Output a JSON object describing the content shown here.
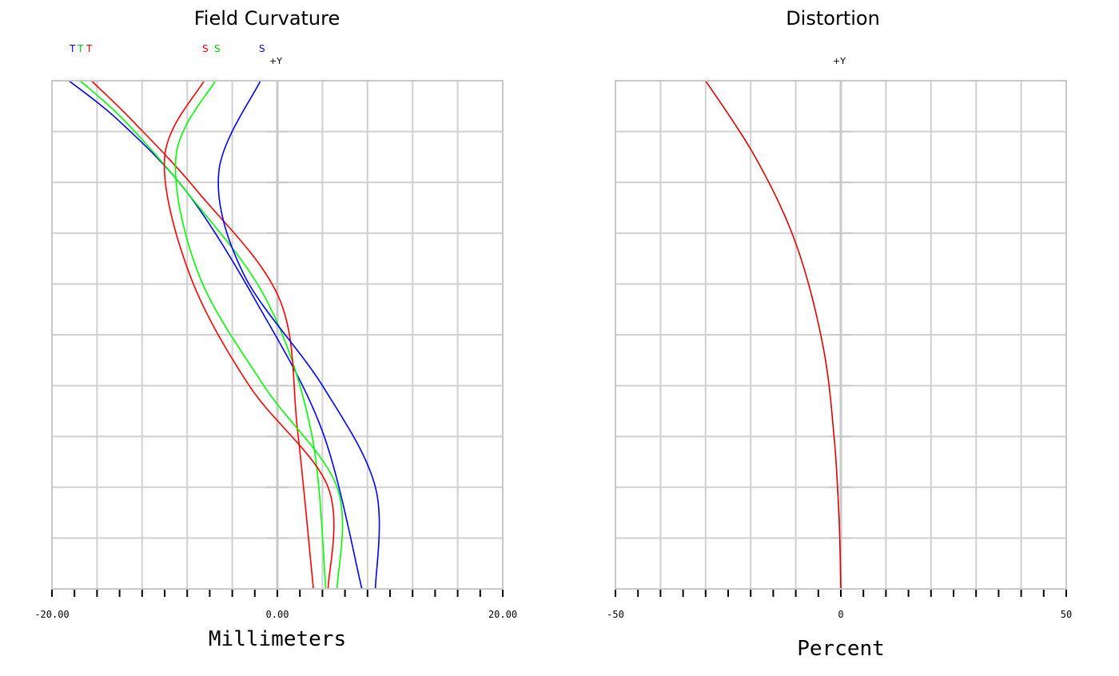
{
  "chart_data": [
    {
      "type": "line",
      "title": "Field Curvature",
      "xlabel": "Millimeters",
      "ylabel_marker": "+Y",
      "xlim": [
        -20,
        20
      ],
      "ylim": [
        0,
        1
      ],
      "tick_labels": [
        "-20.00",
        "0.00",
        "20.00"
      ],
      "tick_label_values": [
        -20,
        0,
        20
      ],
      "legend_tangential": [
        "T",
        "T",
        "T"
      ],
      "legend_sagittal": [
        "S",
        "S",
        "S"
      ],
      "grid": true,
      "series": [
        {
          "type": "T",
          "color": "#0000ff",
          "x": [
            -18.5,
            -14.0,
            -8.0,
            -2.0,
            4.0,
            7.5
          ],
          "y": [
            1.0,
            0.92,
            0.78,
            0.57,
            0.31,
            0.0
          ]
        },
        {
          "type": "T",
          "color": "#00ff00",
          "x": [
            -17.5,
            -13.5,
            -8.0,
            -1.0,
            3.0,
            4.3
          ],
          "y": [
            1.0,
            0.92,
            0.78,
            0.57,
            0.31,
            0.0
          ]
        },
        {
          "type": "T",
          "color": "#ff0000",
          "x": [
            -16.5,
            -12.8,
            -7.0,
            0.2,
            1.8,
            3.2
          ],
          "y": [
            1.0,
            0.92,
            0.78,
            0.57,
            0.31,
            0.0
          ]
        },
        {
          "type": "S",
          "color": "#ff0000",
          "x": [
            -6.5,
            -10.0,
            -7.8,
            -2.5,
            4.5,
            4.5
          ],
          "y": [
            1.0,
            0.85,
            0.62,
            0.4,
            0.2,
            0.0
          ]
        },
        {
          "type": "S",
          "color": "#00ff00",
          "x": [
            -5.5,
            -9.0,
            -7.0,
            -1.2,
            5.3,
            5.3
          ],
          "y": [
            1.0,
            0.85,
            0.62,
            0.4,
            0.2,
            0.0
          ]
        },
        {
          "type": "S",
          "color": "#0000ff",
          "x": [
            -1.5,
            -5.2,
            -3.0,
            4.0,
            8.7,
            8.7
          ],
          "y": [
            1.0,
            0.82,
            0.62,
            0.4,
            0.2,
            0.0
          ]
        }
      ]
    },
    {
      "type": "line",
      "title": "Distortion",
      "xlabel": "Percent",
      "ylabel_marker": "+Y",
      "xlim": [
        -50,
        50
      ],
      "ylim": [
        0,
        1
      ],
      "tick_labels": [
        "-50",
        "0",
        "50"
      ],
      "tick_label_values": [
        -50,
        0,
        50
      ],
      "grid": true,
      "series": [
        {
          "color": "#dd0000",
          "x": [
            -30.0,
            -19.0,
            -10.0,
            -4.0,
            -1.5,
            -0.4,
            0.0
          ],
          "y": [
            1.0,
            0.85,
            0.68,
            0.48,
            0.3,
            0.14,
            0.0
          ]
        }
      ]
    }
  ]
}
